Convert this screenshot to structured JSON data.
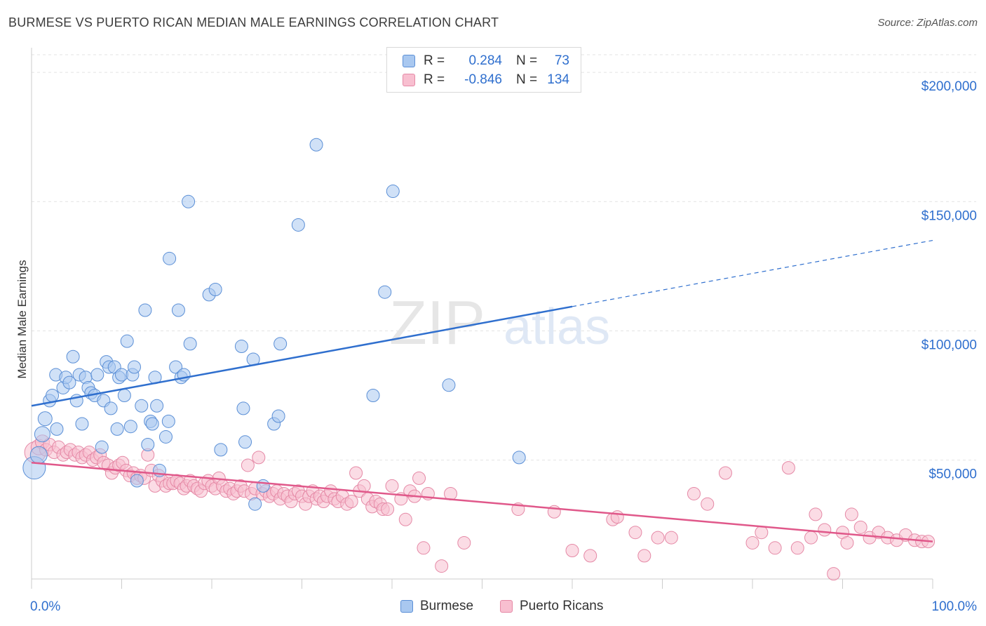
{
  "title": "BURMESE VS PUERTO RICAN MEDIAN MALE EARNINGS CORRELATION CHART",
  "source": "Source: ZipAtlas.com",
  "watermark": {
    "zip": "ZIP",
    "atlas": "atlas"
  },
  "legend": {
    "rows": [
      {
        "r_label": "R =",
        "r_value": "0.284",
        "n_label": "N =",
        "n_value": "73",
        "color": "#a9c8f0",
        "stroke": "#5b8fd6"
      },
      {
        "r_label": "R =",
        "r_value": "-0.846",
        "n_label": "N =",
        "n_value": "134",
        "color": "#f8bfd0",
        "stroke": "#e589a6"
      }
    ]
  },
  "bottom_legend": [
    "Burmese",
    "Puerto Ricans"
  ],
  "chart_data": {
    "type": "scatter",
    "title": "BURMESE VS PUERTO RICAN MEDIAN MALE EARNINGS CORRELATION CHART",
    "xlabel": "",
    "ylabel": "Median Male Earnings",
    "xlim": [
      0,
      100
    ],
    "ylim": [
      4000,
      209000
    ],
    "x_tick_labels": [
      "0.0%",
      "100.0%"
    ],
    "y_ticks": [
      50000,
      100000,
      150000,
      200000
    ],
    "y_tick_labels": [
      "$50,000",
      "$100,000",
      "$150,000",
      "$200,000"
    ],
    "grid": true,
    "legend_position": "top-center",
    "colors": {
      "burmese": "#2f6fce",
      "burmese_fill": "#a9c8f0",
      "puerto": "#e0588a",
      "puerto_fill": "#f8bfd0"
    },
    "series": [
      {
        "name": "Burmese",
        "trend": {
          "x0": 0,
          "y0": 71000,
          "x1": 100,
          "y1": 135000,
          "solid_until": 60
        },
        "points": [
          [
            0.3,
            47000,
            16
          ],
          [
            0.8,
            52000,
            12
          ],
          [
            1.2,
            60000,
            11
          ],
          [
            1.5,
            66000,
            10
          ],
          [
            2.0,
            73000,
            9
          ],
          [
            2.3,
            75000,
            9
          ],
          [
            2.8,
            62000,
            9
          ],
          [
            2.7,
            83000,
            9
          ],
          [
            3.5,
            78000,
            9
          ],
          [
            3.8,
            82000,
            9
          ],
          [
            4.2,
            80000,
            9
          ],
          [
            4.6,
            90000,
            9
          ],
          [
            5.0,
            73000,
            9
          ],
          [
            5.6,
            64000,
            9
          ],
          [
            5.3,
            83000,
            9
          ],
          [
            6.0,
            82000,
            9
          ],
          [
            6.3,
            78000,
            9
          ],
          [
            6.6,
            76000,
            9
          ],
          [
            7.0,
            75000,
            9
          ],
          [
            7.3,
            83000,
            9
          ],
          [
            7.8,
            55000,
            9
          ],
          [
            8.0,
            73000,
            9
          ],
          [
            8.3,
            88000,
            9
          ],
          [
            8.6,
            86000,
            9
          ],
          [
            8.8,
            70000,
            9
          ],
          [
            9.2,
            86000,
            9
          ],
          [
            9.5,
            62000,
            9
          ],
          [
            9.7,
            82000,
            9
          ],
          [
            10.0,
            83000,
            9
          ],
          [
            10.3,
            75000,
            9
          ],
          [
            10.6,
            96000,
            9
          ],
          [
            11.0,
            63000,
            9
          ],
          [
            11.2,
            83000,
            9
          ],
          [
            11.4,
            86000,
            9
          ],
          [
            11.7,
            42000,
            9
          ],
          [
            12.2,
            71000,
            9
          ],
          [
            12.6,
            108000,
            9
          ],
          [
            12.9,
            56000,
            9
          ],
          [
            13.2,
            65000,
            9
          ],
          [
            13.4,
            64000,
            9
          ],
          [
            13.7,
            82000,
            9
          ],
          [
            13.9,
            71000,
            9
          ],
          [
            14.2,
            46000,
            9
          ],
          [
            14.9,
            59000,
            9
          ],
          [
            15.2,
            65000,
            9
          ],
          [
            15.3,
            128000,
            9
          ],
          [
            16.0,
            86000,
            9
          ],
          [
            16.3,
            108000,
            9
          ],
          [
            16.6,
            82000,
            9
          ],
          [
            16.9,
            83000,
            9
          ],
          [
            17.4,
            150000,
            9
          ],
          [
            17.6,
            95000,
            9
          ],
          [
            19.7,
            114000,
            9
          ],
          [
            20.4,
            116000,
            9
          ],
          [
            21.0,
            54000,
            9
          ],
          [
            23.3,
            94000,
            9
          ],
          [
            23.5,
            70000,
            9
          ],
          [
            23.7,
            57000,
            9
          ],
          [
            24.6,
            89000,
            9
          ],
          [
            24.8,
            33000,
            9
          ],
          [
            25.7,
            40000,
            9
          ],
          [
            26.9,
            64000,
            9
          ],
          [
            27.4,
            67000,
            9
          ],
          [
            27.6,
            95000,
            9
          ],
          [
            29.6,
            141000,
            9
          ],
          [
            31.6,
            172000,
            9
          ],
          [
            37.9,
            75000,
            9
          ],
          [
            39.2,
            115000,
            9
          ],
          [
            40.1,
            154000,
            9
          ],
          [
            46.3,
            79000,
            9
          ],
          [
            54.1,
            51000,
            9
          ]
        ]
      },
      {
        "name": "Puerto Ricans",
        "trend": {
          "x0": 0,
          "y0": 49000,
          "x1": 100,
          "y1": 18500
        },
        "points": [
          [
            0.4,
            53000,
            15
          ],
          [
            0.8,
            55000,
            11
          ],
          [
            1.2,
            57000,
            10
          ],
          [
            1.6,
            54000,
            9
          ],
          [
            2.0,
            56000,
            9
          ],
          [
            2.5,
            53000,
            9
          ],
          [
            3.0,
            55000,
            9
          ],
          [
            3.5,
            52000,
            9
          ],
          [
            3.9,
            53000,
            9
          ],
          [
            4.3,
            54000,
            9
          ],
          [
            4.8,
            52000,
            9
          ],
          [
            5.2,
            53000,
            9
          ],
          [
            5.6,
            51000,
            9
          ],
          [
            6.0,
            52000,
            9
          ],
          [
            6.4,
            53000,
            9
          ],
          [
            6.8,
            50000,
            9
          ],
          [
            7.2,
            51000,
            9
          ],
          [
            7.6,
            52000,
            9
          ],
          [
            8.0,
            49000,
            9
          ],
          [
            8.5,
            48000,
            9
          ],
          [
            8.9,
            45000,
            9
          ],
          [
            9.3,
            47000,
            9
          ],
          [
            9.7,
            48000,
            9
          ],
          [
            10.1,
            49000,
            9
          ],
          [
            10.5,
            46000,
            9
          ],
          [
            10.9,
            44000,
            9
          ],
          [
            11.3,
            45000,
            9
          ],
          [
            11.7,
            43000,
            9
          ],
          [
            12.1,
            44000,
            9
          ],
          [
            12.5,
            43000,
            9
          ],
          [
            12.9,
            52000,
            9
          ],
          [
            13.3,
            46000,
            9
          ],
          [
            13.7,
            40000,
            9
          ],
          [
            14.1,
            44000,
            9
          ],
          [
            14.5,
            42000,
            9
          ],
          [
            14.9,
            40000,
            9
          ],
          [
            15.3,
            41000,
            9
          ],
          [
            15.7,
            41000,
            9
          ],
          [
            16.1,
            42000,
            9
          ],
          [
            16.5,
            41000,
            9
          ],
          [
            16.9,
            39000,
            9
          ],
          [
            17.2,
            40000,
            9
          ],
          [
            17.6,
            42000,
            9
          ],
          [
            18.0,
            40000,
            9
          ],
          [
            18.4,
            39000,
            9
          ],
          [
            18.8,
            38000,
            9
          ],
          [
            19.2,
            41000,
            9
          ],
          [
            19.6,
            42000,
            9
          ],
          [
            20.0,
            40000,
            9
          ],
          [
            20.4,
            39000,
            9
          ],
          [
            20.8,
            43000,
            9
          ],
          [
            21.2,
            40000,
            9
          ],
          [
            21.6,
            38000,
            9
          ],
          [
            22.0,
            39000,
            9
          ],
          [
            22.4,
            37000,
            9
          ],
          [
            22.8,
            38000,
            9
          ],
          [
            23.2,
            40000,
            9
          ],
          [
            23.6,
            38000,
            9
          ],
          [
            24.0,
            48000,
            9
          ],
          [
            24.4,
            37000,
            9
          ],
          [
            24.8,
            39000,
            9
          ],
          [
            25.2,
            51000,
            9
          ],
          [
            25.6,
            37000,
            9
          ],
          [
            26.0,
            38000,
            9
          ],
          [
            26.4,
            36000,
            9
          ],
          [
            26.8,
            37000,
            9
          ],
          [
            27.2,
            38000,
            9
          ],
          [
            27.6,
            35000,
            9
          ],
          [
            28.0,
            37000,
            9
          ],
          [
            28.4,
            36000,
            9
          ],
          [
            28.8,
            34000,
            9
          ],
          [
            29.2,
            37000,
            9
          ],
          [
            29.6,
            38000,
            9
          ],
          [
            30.0,
            36000,
            9
          ],
          [
            30.4,
            33000,
            9
          ],
          [
            30.8,
            36000,
            9
          ],
          [
            31.2,
            38000,
            9
          ],
          [
            31.6,
            35000,
            9
          ],
          [
            32.0,
            36000,
            9
          ],
          [
            32.4,
            34000,
            9
          ],
          [
            32.8,
            36000,
            9
          ],
          [
            33.2,
            38000,
            9
          ],
          [
            33.6,
            35000,
            9
          ],
          [
            34.0,
            34000,
            9
          ],
          [
            34.5,
            36000,
            9
          ],
          [
            35.0,
            33000,
            9
          ],
          [
            35.5,
            34000,
            9
          ],
          [
            36.0,
            45000,
            9
          ],
          [
            36.4,
            38000,
            9
          ],
          [
            36.9,
            40000,
            9
          ],
          [
            37.3,
            35000,
            9
          ],
          [
            37.8,
            32000,
            9
          ],
          [
            38.2,
            34000,
            9
          ],
          [
            38.7,
            33000,
            9
          ],
          [
            39.0,
            31000,
            9
          ],
          [
            39.5,
            31000,
            9
          ],
          [
            40.0,
            40000,
            9
          ],
          [
            41.0,
            35000,
            9
          ],
          [
            41.5,
            27000,
            9
          ],
          [
            42.0,
            38000,
            9
          ],
          [
            42.5,
            36000,
            9
          ],
          [
            43.0,
            43000,
            9
          ],
          [
            43.5,
            16000,
            9
          ],
          [
            44.0,
            37000,
            9
          ],
          [
            45.5,
            9000,
            9
          ],
          [
            46.5,
            37000,
            9
          ],
          [
            48.0,
            18000,
            9
          ],
          [
            54.0,
            31000,
            9
          ],
          [
            58.0,
            30000,
            9
          ],
          [
            60.0,
            15000,
            9
          ],
          [
            62.0,
            13000,
            9
          ],
          [
            64.5,
            27000,
            9
          ],
          [
            65.0,
            28000,
            9
          ],
          [
            67.0,
            22000,
            9
          ],
          [
            68.0,
            13000,
            9
          ],
          [
            69.5,
            20000,
            9
          ],
          [
            71.0,
            20000,
            9
          ],
          [
            73.5,
            37000,
            9
          ],
          [
            75.0,
            33000,
            9
          ],
          [
            77.0,
            45000,
            9
          ],
          [
            80.0,
            18000,
            9
          ],
          [
            81.0,
            22000,
            9
          ],
          [
            82.5,
            16000,
            9
          ],
          [
            84.0,
            47000,
            9
          ],
          [
            85.0,
            16000,
            9
          ],
          [
            86.5,
            20000,
            9
          ],
          [
            87.0,
            29000,
            9
          ],
          [
            88.0,
            23000,
            9
          ],
          [
            89.0,
            6000,
            9
          ],
          [
            90.0,
            22000,
            9
          ],
          [
            90.5,
            18000,
            9
          ],
          [
            91.0,
            29000,
            9
          ],
          [
            92.0,
            24000,
            9
          ],
          [
            93.0,
            20000,
            9
          ],
          [
            94.0,
            22000,
            9
          ],
          [
            95.0,
            20000,
            9
          ],
          [
            96.0,
            19000,
            9
          ],
          [
            97.0,
            21000,
            9
          ],
          [
            98.0,
            19000,
            9
          ],
          [
            98.8,
            18500,
            9
          ],
          [
            99.5,
            18500,
            9
          ]
        ]
      }
    ]
  }
}
